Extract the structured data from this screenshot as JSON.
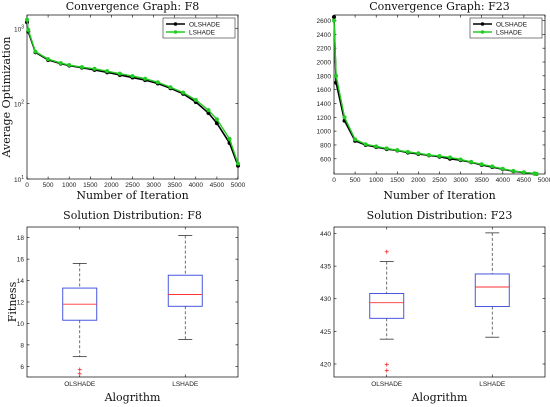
{
  "chart_data": [
    {
      "type": "line",
      "title": "Convergence Graph: F8",
      "xlabel": "Number of Iteration",
      "ylabel": "Average Optimization",
      "xlim": [
        0,
        5000
      ],
      "ylim": [
        10,
        1500
      ],
      "yscale": "log",
      "xticks": [
        0,
        500,
        1000,
        1500,
        2000,
        2500,
        3000,
        3500,
        4000,
        4500,
        5000
      ],
      "yticks": [
        {
          "value": 10,
          "base": "10",
          "exp": "1"
        },
        {
          "value": 100,
          "base": "10",
          "exp": "2"
        },
        {
          "value": 1000,
          "base": "10",
          "exp": "3"
        }
      ],
      "grid": false,
      "legend": "top-right",
      "series": [
        {
          "name": "OLSHADE",
          "color": "#000000",
          "x": [
            0,
            30,
            200,
            500,
            800,
            1000,
            1300,
            1600,
            1900,
            2200,
            2500,
            2800,
            3100,
            3400,
            3700,
            4000,
            4300,
            4500,
            4800,
            5000
          ],
          "y": [
            1200,
            900,
            480,
            380,
            340,
            320,
            300,
            280,
            260,
            240,
            222,
            205,
            185,
            160,
            135,
            105,
            75,
            55,
            30,
            15
          ]
        },
        {
          "name": "LSHADE",
          "color": "#22cc22",
          "x": [
            0,
            30,
            200,
            500,
            800,
            1000,
            1300,
            1600,
            1900,
            2200,
            2500,
            2800,
            3100,
            3400,
            3700,
            4000,
            4300,
            4500,
            4800,
            5000
          ],
          "y": [
            1300,
            950,
            490,
            390,
            345,
            325,
            305,
            290,
            270,
            250,
            232,
            214,
            192,
            165,
            140,
            112,
            82,
            62,
            34,
            16
          ]
        }
      ]
    },
    {
      "type": "line",
      "title": "Convergence Graph: F23",
      "xlabel": "Number of Iteration",
      "ylabel": "",
      "xlim": [
        0,
        5000
      ],
      "ylim": [
        380,
        2680
      ],
      "yscale": "linear",
      "xticks": [
        0,
        500,
        1000,
        1500,
        2000,
        2500,
        3000,
        3500,
        4000,
        4500,
        5000
      ],
      "yticks": [
        600,
        800,
        1000,
        1200,
        1400,
        1600,
        1800,
        2000,
        2200,
        2400,
        2600
      ],
      "grid": false,
      "legend": "top-right",
      "series": [
        {
          "name": "OLSHADE",
          "color": "#000000",
          "x": [
            0,
            50,
            250,
            500,
            750,
            1000,
            1250,
            1500,
            1750,
            2000,
            2250,
            2500,
            2750,
            3000,
            3250,
            3500,
            3750,
            4000,
            4250,
            4500,
            4750,
            4800
          ],
          "y": [
            2650,
            1700,
            1150,
            860,
            800,
            770,
            740,
            720,
            690,
            670,
            650,
            630,
            600,
            580,
            550,
            510,
            480,
            450,
            420,
            400,
            385,
            380
          ]
        },
        {
          "name": "LSHADE",
          "color": "#22cc22",
          "x": [
            0,
            50,
            250,
            500,
            750,
            1000,
            1250,
            1500,
            1750,
            2000,
            2250,
            2500,
            2750,
            3000,
            3250,
            3500,
            3750,
            4000,
            4250,
            4500,
            4750,
            4800
          ],
          "y": [
            2600,
            1800,
            1200,
            880,
            810,
            780,
            750,
            725,
            700,
            680,
            655,
            640,
            620,
            590,
            555,
            520,
            490,
            455,
            425,
            405,
            388,
            382
          ]
        }
      ]
    },
    {
      "type": "box",
      "title": "Solution Distribution: F8",
      "xlabel": "Alogrithm",
      "ylabel": "Fitness",
      "ylim": [
        5,
        19
      ],
      "yticks": [
        6,
        8,
        10,
        12,
        14,
        16,
        18
      ],
      "categories": [
        "OLSHADE",
        "LSHADE"
      ],
      "boxes": [
        {
          "min": 6.9,
          "q1": 10.3,
          "median": 11.8,
          "q3": 13.3,
          "max": 15.6,
          "outliers": [
            5.7,
            5.3
          ]
        },
        {
          "min": 8.5,
          "q1": 11.6,
          "median": 12.7,
          "q3": 14.5,
          "max": 18.2,
          "outliers": []
        }
      ]
    },
    {
      "type": "box",
      "title": "Solution Distribution: F23",
      "xlabel": "Alogrithm",
      "ylabel": "",
      "ylim": [
        418,
        441
      ],
      "yticks": [
        420,
        425,
        430,
        435,
        440
      ],
      "categories": [
        "OLSHADE",
        "LSHADE"
      ],
      "boxes": [
        {
          "min": 423.8,
          "q1": 427.0,
          "median": 429.4,
          "q3": 430.8,
          "max": 435.7,
          "outliers": [
            437.2,
            419.9,
            419.0
          ]
        },
        {
          "min": 424.1,
          "q1": 428.8,
          "median": 431.8,
          "q3": 433.8,
          "max": 440.1,
          "outliers": []
        }
      ]
    }
  ],
  "style": {
    "box_color": "#3344dd",
    "median_color": "#ff3333",
    "whisker_color": "#333333",
    "outlier_color": "#ff2222",
    "axis_color": "#000000"
  }
}
